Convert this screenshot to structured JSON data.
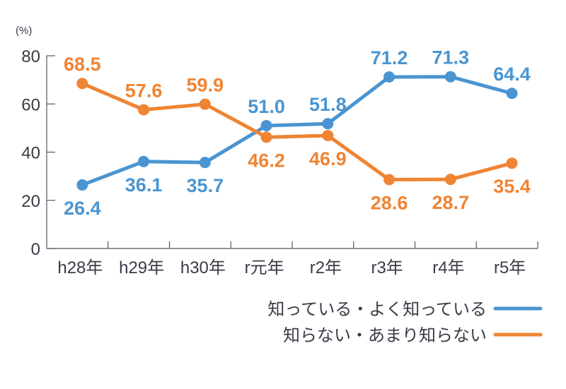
{
  "chart_data": {
    "type": "line",
    "ylabel": "(%)",
    "ylim": [
      0,
      80
    ],
    "yticks": [
      "0",
      "20",
      "40",
      "60",
      "80"
    ],
    "categories": [
      "h28年",
      "h29年",
      "h30年",
      "r元年",
      "r2年",
      "r3年",
      "r4年",
      "r5年"
    ],
    "series": [
      {
        "name": "知っている・よく知っている",
        "color": "#4a95d1",
        "values": [
          26.4,
          36.1,
          35.7,
          51.0,
          51.8,
          71.2,
          71.3,
          64.4
        ],
        "labels": [
          "26.4",
          "36.1",
          "35.7",
          "51.0",
          "51.8",
          "71.2",
          "71.3",
          "64.4"
        ]
      },
      {
        "name": "知らない・あまり知らない",
        "color": "#ef8433",
        "values": [
          68.5,
          57.6,
          59.9,
          46.2,
          46.9,
          28.6,
          28.7,
          35.4
        ],
        "labels": [
          "68.5",
          "57.6",
          "59.9",
          "46.2",
          "46.9",
          "28.6",
          "28.7",
          "35.4"
        ]
      }
    ],
    "grid": false,
    "legend": "bottom-right"
  }
}
